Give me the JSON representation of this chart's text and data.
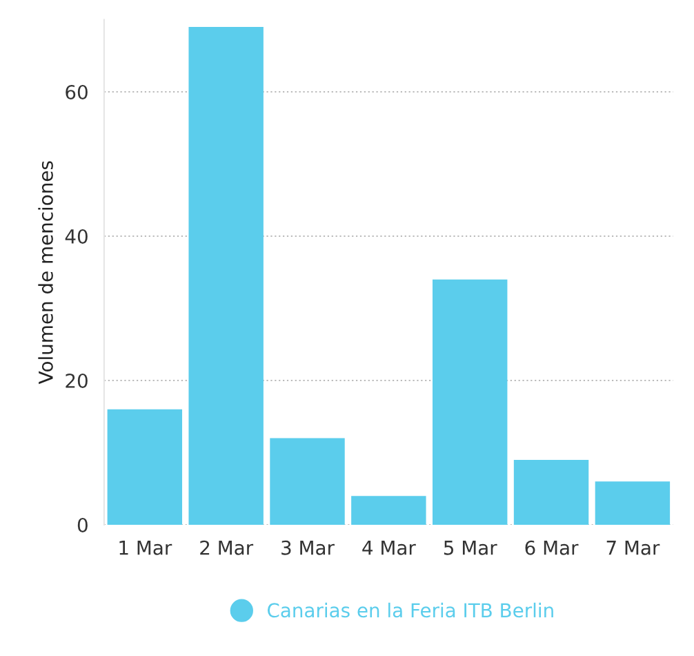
{
  "chart_data": {
    "type": "bar",
    "ylabel": "Volumen de menciones",
    "categories": [
      "1 Mar",
      "2 Mar",
      "3 Mar",
      "4 Mar",
      "5 Mar",
      "6 Mar",
      "7 Mar"
    ],
    "series": [
      {
        "name": "Canarias en la Feria ITB Berlin",
        "color": "#5bcdec",
        "values": [
          16,
          69,
          12,
          4,
          34,
          9,
          6
        ]
      }
    ],
    "ylim": [
      0,
      70
    ],
    "yticks": [
      0,
      20,
      40,
      60
    ],
    "grid": "y",
    "legend": "bottom"
  }
}
